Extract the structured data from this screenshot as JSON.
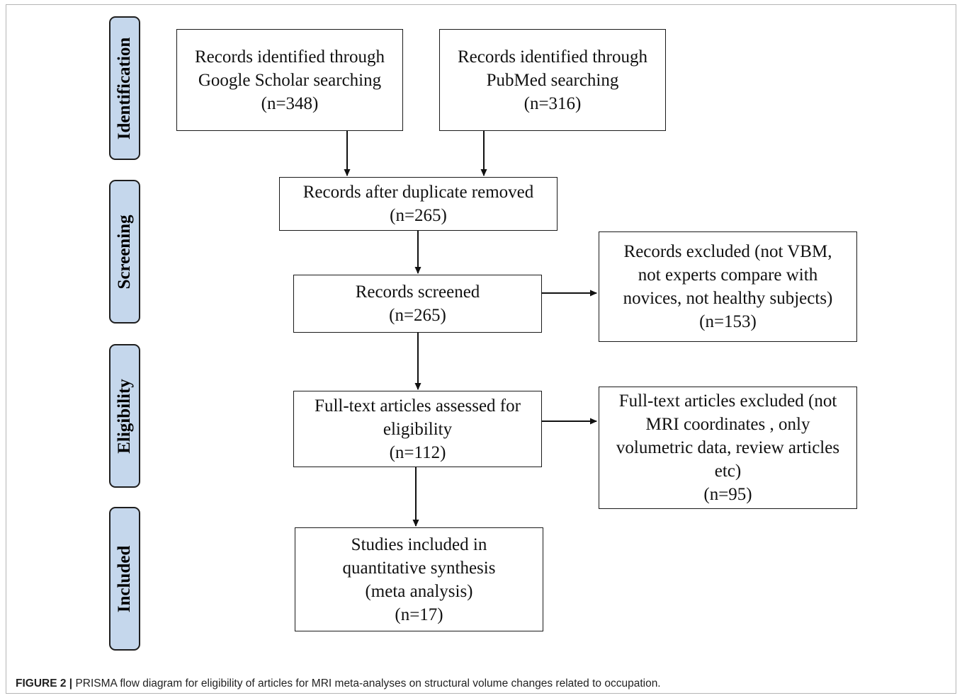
{
  "stages": {
    "identification": "Identification",
    "screening": "Screening",
    "eligibility": "Eligibility",
    "included": "Included"
  },
  "boxes": {
    "google_scholar": [
      "Records identified through",
      "Google Scholar  searching",
      "(n=348)"
    ],
    "pubmed": [
      "Records identified through",
      "PubMed  searching",
      "(n=316)"
    ],
    "after_duplicates": [
      "Records after duplicate removed",
      "(n=265)"
    ],
    "screened": [
      "Records screened",
      "(n=265)"
    ],
    "excluded_records": [
      "Records excluded (not VBM,",
      "not experts compare with",
      "novices, not healthy subjects)",
      "(n=153)"
    ],
    "full_text_assessed": [
      "Full-text articles assessed for",
      "eligibility",
      "(n=112)"
    ],
    "full_text_excluded": [
      "Full-text articles excluded (not",
      "MRI coordinates , only",
      "volumetric data, review articles",
      "etc)",
      "(n=95)"
    ],
    "included_studies": [
      "Studies included in",
      "quantitative synthesis",
      "(meta analysis)",
      "(n=17)"
    ]
  },
  "caption": {
    "label": "FIGURE 2 |",
    "text": " PRISMA flow diagram for eligibility of articles for MRI meta-analyses on structural volume changes related to occupation."
  },
  "colors": {
    "stage_fill": "#c5d7ec",
    "stroke": "#1a1a1a"
  }
}
